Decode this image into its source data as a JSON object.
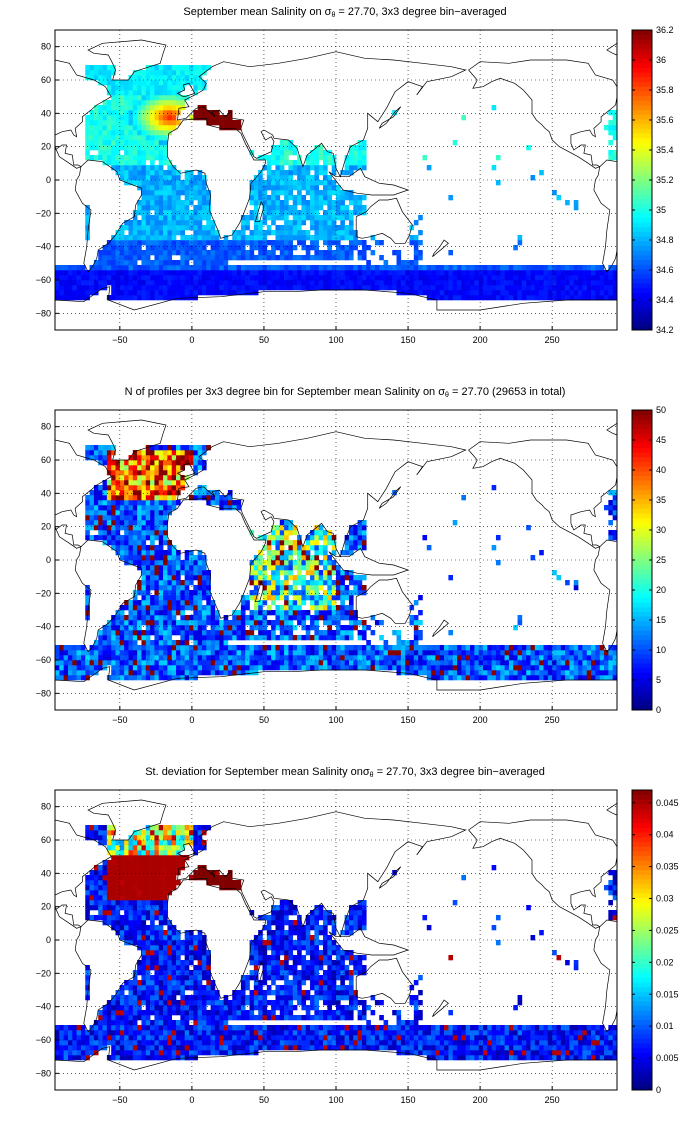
{
  "panels": [
    {
      "title_pre": "September mean Salinity on σ",
      "title_sub": "θ",
      "title_post": " = 27.70, 3x3 degree bin−averaged",
      "colorbar": {
        "min": 34.2,
        "max": 36.2,
        "ticks": [
          "36.2",
          "36",
          "35.8",
          "35.6",
          "35.4",
          "35.2",
          "35",
          "34.8",
          "34.6",
          "34.4",
          "34.2"
        ]
      },
      "field": "salinity"
    },
    {
      "title_pre": "N of profiles per 3x3 degree bin for September mean Salinity on σ",
      "title_sub": "θ",
      "title_post": " = 27.70 (29653 in total)",
      "colorbar": {
        "min": 0,
        "max": 50,
        "ticks": [
          "50",
          "45",
          "40",
          "35",
          "30",
          "25",
          "20",
          "15",
          "10",
          "5",
          "0"
        ]
      },
      "field": "count"
    },
    {
      "title_pre": "St. deviation for September mean Salinity onσ",
      "title_sub": "θ",
      "title_post": " = 27.70, 3x3 degree bin−averaged",
      "colorbar": {
        "min": 0,
        "max": 0.047,
        "ticks": [
          "0.045",
          "0.04",
          "0.035",
          "0.03",
          "0.025",
          "0.02",
          "0.015",
          "0.01",
          "0.005",
          "0"
        ]
      },
      "field": "stdev"
    }
  ],
  "axes": {
    "x_ticks": [
      "−50",
      "0",
      "50",
      "100",
      "150",
      "200",
      "250"
    ],
    "y_ticks": [
      "80",
      "60",
      "40",
      "20",
      "0",
      "−20",
      "−40",
      "−60",
      "−80"
    ],
    "x_range": [
      -95,
      295
    ],
    "y_range": [
      -90,
      90
    ],
    "grid": "dotted"
  },
  "colormap": "jet"
}
